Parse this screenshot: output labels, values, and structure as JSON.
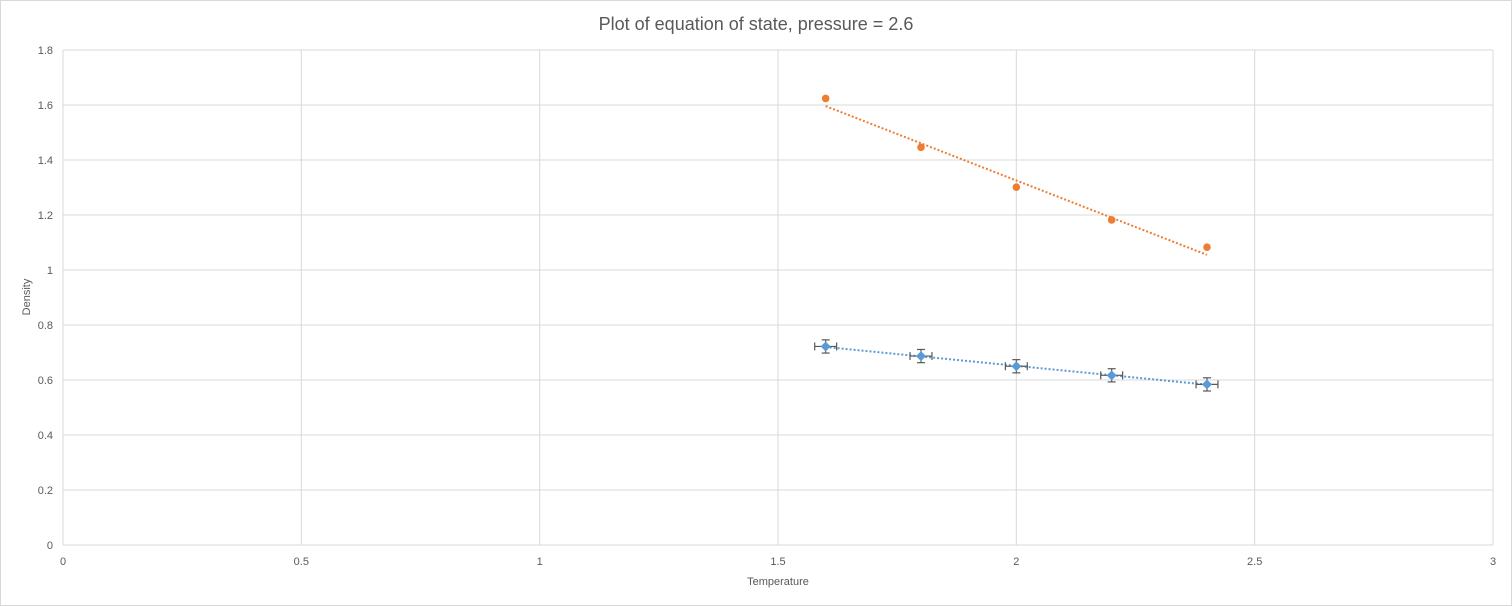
{
  "chart_data": {
    "type": "scatter",
    "title": "Plot of equation of state, pressure = 2.6",
    "xlabel": "Temperature",
    "ylabel": "Density",
    "xlim": [
      0,
      3
    ],
    "ylim": [
      0,
      1.8
    ],
    "xticks": [
      "0",
      "0.5",
      "1",
      "1.5",
      "2",
      "2.5",
      "3"
    ],
    "yticks": [
      "0",
      "0.2",
      "0.4",
      "0.6",
      "0.8",
      "1",
      "1.2",
      "1.4",
      "1.6",
      "1.8"
    ],
    "grid": true,
    "legend": "none",
    "series": [
      {
        "name": "series-1",
        "color": "#5b9bd5",
        "marker": "diamond",
        "x": [
          1.6,
          1.8,
          2.0,
          2.2,
          2.4
        ],
        "y": [
          0.722,
          0.687,
          0.65,
          0.617,
          0.584
        ],
        "yerr": 0.024,
        "xerr": 0.023,
        "trendline": {
          "type": "linear",
          "x": [
            1.6,
            2.4
          ],
          "y": [
            0.72,
            0.583
          ]
        }
      },
      {
        "name": "series-2",
        "color": "#ed7d31",
        "marker": "circle",
        "x": [
          1.6,
          1.8,
          2.0,
          2.2,
          2.4
        ],
        "y": [
          1.624,
          1.446,
          1.301,
          1.182,
          1.083
        ],
        "trendline": {
          "type": "linear",
          "x": [
            1.6,
            2.4
          ],
          "y": [
            1.596,
            1.055
          ]
        }
      }
    ]
  }
}
